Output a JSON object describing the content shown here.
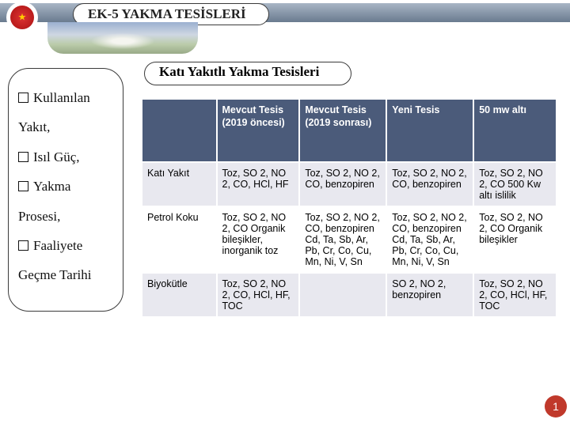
{
  "header": {
    "title": "EK-5 YAKMA TESİSLERİ"
  },
  "section_title": "Katı Yakıtlı Yakma Tesisleri",
  "sidebar": {
    "items": [
      "Kullanılan Yakıt,",
      "Isıl Güç,",
      "Yakma Prosesi,",
      "Faaliyete Geçme Tarihi"
    ]
  },
  "table": {
    "columns": [
      "",
      "Mevcut Tesis (2019 öncesi)",
      "Mevcut Tesis (2019 sonrası)",
      "Yeni Tesis",
      "50 mw altı"
    ],
    "rows": [
      {
        "label": "Katı Yakıt",
        "cells": [
          "Toz, SO 2, NO 2, CO, HCl, HF",
          "Toz, SO 2, NO 2, CO, benzopiren",
          "Toz, SO 2, NO 2, CO, benzopiren",
          "Toz, SO 2, NO 2, CO 500 Kw altı islilik"
        ]
      },
      {
        "label": "Petrol Koku",
        "cells": [
          "Toz, SO 2, NO 2, CO Organik bileşikler, inorganik toz",
          "Toz, SO 2, NO 2, CO, benzopiren Cd, Ta, Sb, Ar, Pb, Cr, Co, Cu, Mn, Ni, V, Sn",
          "Toz, SO 2, NO 2, CO, benzopiren Cd, Ta, Sb, Ar, Pb, Cr, Co, Cu, Mn, Ni, V, Sn",
          "Toz, SO 2, NO 2, CO Organik bileşikler"
        ]
      },
      {
        "label": "Biyokütle",
        "cells": [
          "Toz, SO 2, NO 2, CO, HCl, HF, TOC",
          "",
          "SO 2, NO 2, benzopiren",
          "Toz, SO 2, NO 2, CO, HCl, HF, TOC"
        ]
      }
    ]
  },
  "page_number": "1",
  "colors": {
    "header_bg": "#4b5b7a",
    "row_alt": "#e8e8ef",
    "bubble": "#c0392b"
  }
}
